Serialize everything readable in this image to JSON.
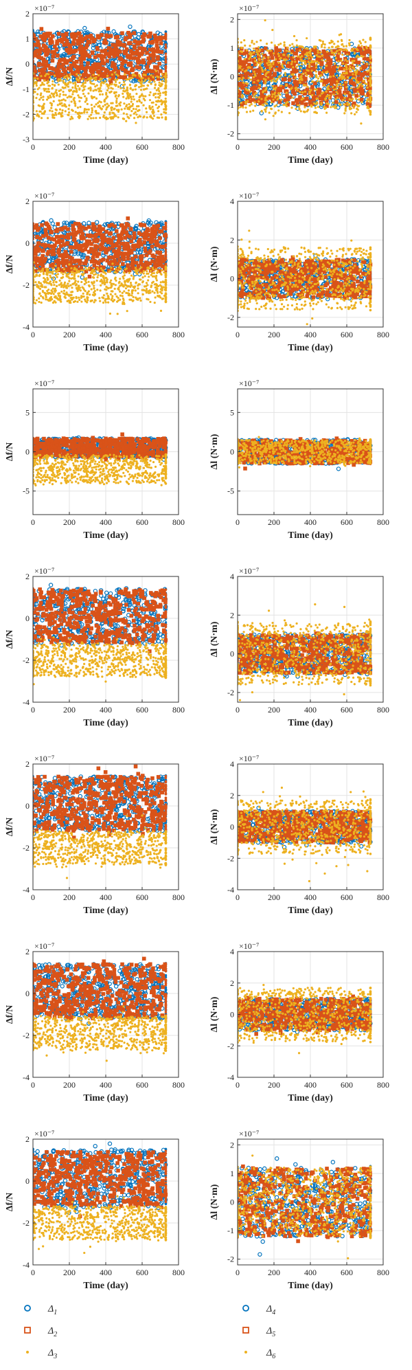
{
  "colors": {
    "d1": "#0072bd",
    "d2": "#d95319",
    "d3": "#edb120",
    "axis": "#333333",
    "grid": "#e3e3e3"
  },
  "chart_data": [
    {
      "type": "scatter",
      "row": 0,
      "col": 0,
      "xlabel": "Time (day)",
      "ylabel": "Δf/N",
      "exponent": "×10⁻⁷",
      "xlim": [
        0,
        800
      ],
      "xticks": [
        0,
        200,
        400,
        600,
        800
      ],
      "ylim": [
        -3,
        2
      ],
      "yticks": [
        -3,
        -2,
        -1,
        0,
        1,
        2
      ],
      "series": [
        {
          "key": "d1",
          "mean": 0.3,
          "spread": 1.0,
          "tail": 0.15
        },
        {
          "key": "d2",
          "mean": 0.3,
          "spread": 0.95,
          "tail": 0.25
        },
        {
          "key": "d3",
          "mean": -1.3,
          "spread": 0.9,
          "tail": 0.15
        }
      ]
    },
    {
      "type": "scatter",
      "row": 0,
      "col": 1,
      "xlabel": "Time (day)",
      "ylabel": "Δl (N·m)",
      "exponent": "×10⁻⁷",
      "xlim": [
        0,
        800
      ],
      "xticks": [
        0,
        200,
        400,
        600,
        800
      ],
      "ylim": [
        -2.2,
        2.2
      ],
      "yticks": [
        -2,
        -1,
        0,
        1,
        2
      ],
      "series": [
        {
          "key": "d4",
          "mean": 0,
          "spread": 1.0,
          "tail": 0.2
        },
        {
          "key": "d5",
          "mean": 0,
          "spread": 1.0,
          "tail": 0.2
        },
        {
          "key": "d6",
          "mean": 0,
          "spread": 1.3,
          "tail": 0.6
        }
      ]
    },
    {
      "type": "scatter",
      "row": 1,
      "col": 0,
      "xlabel": "Time (day)",
      "ylabel": "Δf/N",
      "exponent": "×10⁻⁷",
      "xlim": [
        0,
        800
      ],
      "xticks": [
        0,
        200,
        400,
        600,
        800
      ],
      "ylim": [
        -4,
        2
      ],
      "yticks": [
        -4,
        -2,
        0,
        2
      ],
      "series": [
        {
          "key": "d1",
          "mean": -0.2,
          "spread": 1.2,
          "tail": 0.2
        },
        {
          "key": "d2",
          "mean": -0.2,
          "spread": 1.15,
          "tail": 0.35
        },
        {
          "key": "d3",
          "mean": -2.0,
          "spread": 0.85,
          "tail": 0.4
        }
      ]
    },
    {
      "type": "scatter",
      "row": 1,
      "col": 1,
      "xlabel": "Time (day)",
      "ylabel": "Δl (N·m)",
      "exponent": "×10⁻⁷",
      "xlim": [
        0,
        800
      ],
      "xticks": [
        0,
        200,
        400,
        600,
        800
      ],
      "ylim": [
        -2.5,
        4
      ],
      "yticks": [
        -2,
        0,
        2,
        4
      ],
      "series": [
        {
          "key": "d4",
          "mean": 0,
          "spread": 1.0,
          "tail": 0.2
        },
        {
          "key": "d5",
          "mean": 0,
          "spread": 1.0,
          "tail": 0.2
        },
        {
          "key": "d6",
          "mean": 0,
          "spread": 1.6,
          "tail": 0.8
        }
      ]
    },
    {
      "type": "scatter",
      "row": 2,
      "col": 0,
      "xlabel": "Time (day)",
      "ylabel": "Δf/N",
      "exponent": "×10⁻⁷",
      "xlim": [
        0,
        800
      ],
      "xticks": [
        0,
        200,
        400,
        600,
        800
      ],
      "ylim": [
        -8,
        8
      ],
      "yticks": [
        -5,
        0,
        5
      ],
      "series": [
        {
          "key": "d1",
          "mean": 0.5,
          "spread": 1.2,
          "tail": 0.3
        },
        {
          "key": "d2",
          "mean": 0.5,
          "spread": 1.2,
          "tail": 0.3
        },
        {
          "key": "d3",
          "mean": -2.2,
          "spread": 1.8,
          "tail": 0.4
        }
      ]
    },
    {
      "type": "scatter",
      "row": 2,
      "col": 1,
      "xlabel": "Time (day)",
      "ylabel": "Δl (N·m)",
      "exponent": "×10⁻⁷",
      "xlim": [
        0,
        800
      ],
      "xticks": [
        0,
        200,
        400,
        600,
        800
      ],
      "ylim": [
        -8,
        8
      ],
      "yticks": [
        -5,
        0,
        5
      ],
      "series": [
        {
          "key": "d4",
          "mean": 0,
          "spread": 1.5,
          "tail": 0.3
        },
        {
          "key": "d5",
          "mean": 0,
          "spread": 1.5,
          "tail": 0.3
        },
        {
          "key": "d6",
          "mean": 0,
          "spread": 1.5,
          "tail": 0.3
        }
      ]
    },
    {
      "type": "scatter",
      "row": 3,
      "col": 0,
      "xlabel": "Time (day)",
      "ylabel": "Δf/N",
      "exponent": "×10⁻⁷",
      "xlim": [
        0,
        800
      ],
      "xticks": [
        0,
        200,
        400,
        600,
        800
      ],
      "ylim": [
        -4,
        2
      ],
      "yticks": [
        -4,
        -2,
        0,
        2
      ],
      "series": [
        {
          "key": "d1",
          "mean": 0.1,
          "spread": 1.3,
          "tail": 0.2
        },
        {
          "key": "d2",
          "mean": 0.1,
          "spread": 1.3,
          "tail": 0.4
        },
        {
          "key": "d3",
          "mean": -2.0,
          "spread": 0.8,
          "tail": 0.4
        }
      ]
    },
    {
      "type": "scatter",
      "row": 3,
      "col": 1,
      "xlabel": "Time (day)",
      "ylabel": "Δl (N·m)",
      "exponent": "×10⁻⁷",
      "xlim": [
        0,
        800
      ],
      "xticks": [
        0,
        200,
        400,
        600,
        800
      ],
      "ylim": [
        -2.5,
        4
      ],
      "yticks": [
        -2,
        0,
        2,
        4
      ],
      "series": [
        {
          "key": "d4",
          "mean": 0,
          "spread": 1.0,
          "tail": 0.2
        },
        {
          "key": "d5",
          "mean": 0,
          "spread": 1.0,
          "tail": 0.2
        },
        {
          "key": "d6",
          "mean": 0,
          "spread": 1.6,
          "tail": 0.7
        }
      ]
    },
    {
      "type": "scatter",
      "row": 4,
      "col": 0,
      "xlabel": "Time (day)",
      "ylabel": "Δf/N",
      "exponent": "×10⁻⁷",
      "xlim": [
        0,
        800
      ],
      "xticks": [
        0,
        200,
        400,
        600,
        800
      ],
      "ylim": [
        -4,
        2
      ],
      "yticks": [
        -4,
        -2,
        0,
        2
      ],
      "series": [
        {
          "key": "d1",
          "mean": 0.1,
          "spread": 1.3,
          "tail": 0.2
        },
        {
          "key": "d2",
          "mean": 0.1,
          "spread": 1.3,
          "tail": 0.4
        },
        {
          "key": "d3",
          "mean": -2.0,
          "spread": 0.8,
          "tail": 0.4
        }
      ]
    },
    {
      "type": "scatter",
      "row": 4,
      "col": 1,
      "xlabel": "Time (day)",
      "ylabel": "Δl (N·m)",
      "exponent": "×10⁻⁷",
      "xlim": [
        0,
        800
      ],
      "xticks": [
        0,
        200,
        400,
        600,
        800
      ],
      "ylim": [
        -4,
        4
      ],
      "yticks": [
        -4,
        -2,
        0,
        2,
        4
      ],
      "series": [
        {
          "key": "d4",
          "mean": 0,
          "spread": 1.0,
          "tail": 0.2
        },
        {
          "key": "d5",
          "mean": 0,
          "spread": 1.0,
          "tail": 0.2
        },
        {
          "key": "d6",
          "mean": 0,
          "spread": 1.7,
          "tail": 0.9
        }
      ]
    },
    {
      "type": "scatter",
      "row": 5,
      "col": 0,
      "xlabel": "Time (day)",
      "ylabel": "Δf/N",
      "exponent": "×10⁻⁷",
      "xlim": [
        0,
        800
      ],
      "xticks": [
        0,
        200,
        400,
        600,
        800
      ],
      "ylim": [
        -4,
        2
      ],
      "yticks": [
        -4,
        -2,
        0,
        2
      ],
      "series": [
        {
          "key": "d1",
          "mean": 0.1,
          "spread": 1.3,
          "tail": 0.2
        },
        {
          "key": "d2",
          "mean": 0.1,
          "spread": 1.3,
          "tail": 0.45
        },
        {
          "key": "d3",
          "mean": -1.9,
          "spread": 0.8,
          "tail": 0.4
        }
      ]
    },
    {
      "type": "scatter",
      "row": 5,
      "col": 1,
      "xlabel": "Time (day)",
      "ylabel": "Δl (N·m)",
      "exponent": "×10⁻⁷",
      "xlim": [
        0,
        800
      ],
      "xticks": [
        0,
        200,
        400,
        600,
        800
      ],
      "ylim": [
        -4,
        4
      ],
      "yticks": [
        -4,
        -2,
        0,
        2,
        4
      ],
      "series": [
        {
          "key": "d4",
          "mean": 0,
          "spread": 1.0,
          "tail": 0.2
        },
        {
          "key": "d5",
          "mean": 0,
          "spread": 1.0,
          "tail": 0.2
        },
        {
          "key": "d6",
          "mean": 0,
          "spread": 1.7,
          "tail": 0.9
        }
      ]
    },
    {
      "type": "scatter",
      "row": 6,
      "col": 0,
      "xlabel": "Time (day)",
      "ylabel": "Δf/N",
      "exponent": "×10⁻⁷",
      "xlim": [
        0,
        800
      ],
      "xticks": [
        0,
        200,
        400,
        600,
        800
      ],
      "ylim": [
        -4,
        2
      ],
      "yticks": [
        -4,
        -2,
        0,
        2
      ],
      "series": [
        {
          "key": "d1",
          "mean": 0.1,
          "spread": 1.4,
          "tail": 0.3
        },
        {
          "key": "d2",
          "mean": 0.1,
          "spread": 1.3,
          "tail": 0.35
        },
        {
          "key": "d3",
          "mean": -2.0,
          "spread": 0.8,
          "tail": 0.4
        }
      ]
    },
    {
      "type": "scatter",
      "row": 6,
      "col": 1,
      "xlabel": "Time (day)",
      "ylabel": "Δl (N·m)",
      "exponent": "×10⁻⁷",
      "xlim": [
        0,
        800
      ],
      "xticks": [
        0,
        200,
        400,
        600,
        800
      ],
      "ylim": [
        -2.2,
        2.2
      ],
      "yticks": [
        -2,
        -1,
        0,
        1,
        2
      ],
      "series": [
        {
          "key": "d4",
          "mean": 0,
          "spread": 1.2,
          "tail": 0.3
        },
        {
          "key": "d5",
          "mean": 0,
          "spread": 1.2,
          "tail": 0.2
        },
        {
          "key": "d6",
          "mean": 0,
          "spread": 1.2,
          "tail": 0.4
        }
      ]
    }
  ],
  "legend": {
    "left": [
      {
        "key": "d1",
        "marker": "circle",
        "label": "Δ",
        "sub": "1"
      },
      {
        "key": "d2",
        "marker": "square",
        "label": "Δ",
        "sub": "2"
      },
      {
        "key": "d3",
        "marker": "dot",
        "label": "Δ",
        "sub": "3"
      }
    ],
    "right": [
      {
        "key": "d4",
        "marker": "circle",
        "label": "Δ",
        "sub": "4"
      },
      {
        "key": "d5",
        "marker": "square",
        "label": "Δ",
        "sub": "5"
      },
      {
        "key": "d6",
        "marker": "dot",
        "label": "Δ",
        "sub": "6"
      }
    ]
  }
}
